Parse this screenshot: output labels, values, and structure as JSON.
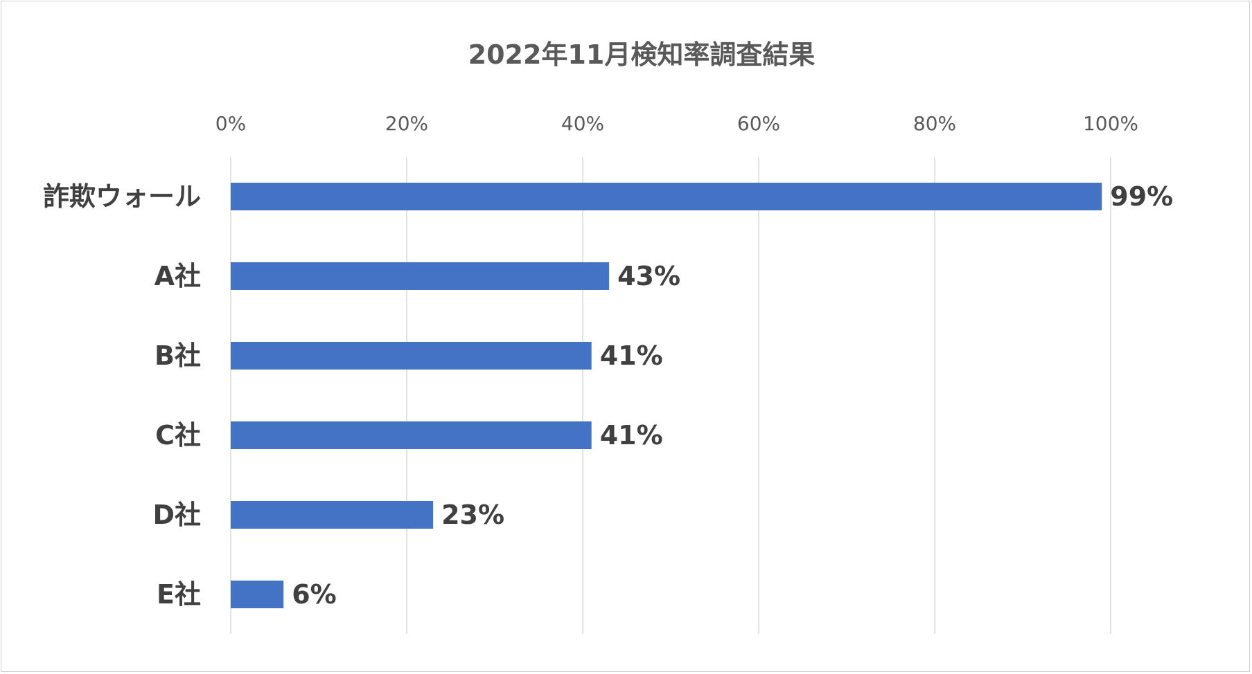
{
  "chart_data": {
    "type": "bar",
    "orientation": "horizontal",
    "title": "2022年11月検知率調査結果",
    "categories": [
      "詐欺ウォール",
      "A社",
      "B社",
      "C社",
      "D社",
      "E社"
    ],
    "values": [
      99,
      43,
      41,
      41,
      23,
      6
    ],
    "data_labels": [
      "99%",
      "43%",
      "41%",
      "41%",
      "23%",
      "6%"
    ],
    "x_ticks": [
      "0%",
      "20%",
      "40%",
      "60%",
      "80%",
      "100%"
    ],
    "xlim": [
      0,
      100
    ],
    "x_axis_position": "top",
    "grid": true,
    "legend": "none",
    "xlabel": "",
    "ylabel": "",
    "bar_color": "#4472C4"
  }
}
